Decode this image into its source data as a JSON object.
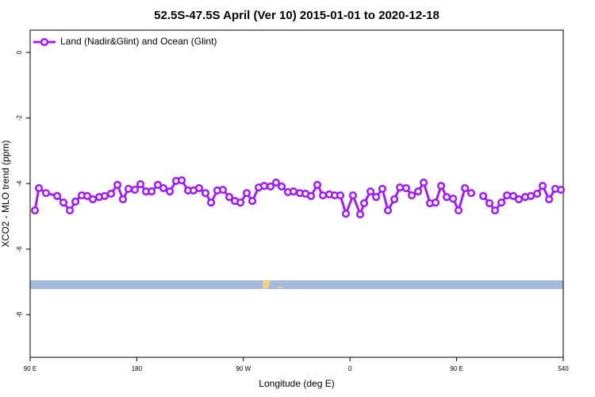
{
  "chart_data": {
    "type": "line",
    "title": "52.5S-47.5S April (Ver 10)   2015-01-01 to 2020-12-18",
    "x_label": "Longitude (deg E)",
    "y_label": "XCO2 - MLO trend (ppm)",
    "legend": "topleft",
    "xlim": [
      90,
      540
    ],
    "ylim": [
      -9.3,
      0.68
    ],
    "xticks": [
      {
        "value": 90,
        "label": "90 E"
      },
      180,
      {
        "value": 270,
        "label": "90 W"
      },
      {
        "value": 360,
        "label": "0"
      },
      {
        "value": 450,
        "label": "90 E"
      },
      540
    ],
    "yticks": [
      0,
      -2,
      -4,
      -6,
      -8
    ],
    "x": [
      94,
      97.4,
      103.4,
      112.8,
      118.1,
      123.5,
      128.2,
      133.5,
      138.2,
      142.9,
      148.3,
      152.9,
      158.3,
      163.7,
      168.3,
      173,
      178.4,
      183.1,
      187.8,
      192.5,
      197.8,
      202.5,
      207.9,
      213.2,
      217.9,
      223.3,
      227.9,
      232.6,
      238,
      242.7,
      248,
      252.7,
      258.1,
      262.8,
      267.5,
      272.8,
      277.5,
      282.9,
      287.5,
      292.9,
      297.6,
      302.3,
      307.6,
      312.3,
      317.7,
      322.4,
      327.1,
      332.4,
      337.1,
      342.5,
      347.1,
      351.8,
      356.5,
      362.5,
      368.6,
      371.9,
      377.3,
      382,
      387.3,
      392,
      397.4,
      402.1,
      407.4,
      412.1,
      417.5,
      422.2,
      427.5,
      432.2,
      436.9,
      441.6,
      447,
      451.6,
      457,
      462.3,
      467.5,
      472.4,
      477.7,
      482.4,
      487.8,
      492.5,
      497.8,
      502.5,
      507.9,
      512.6,
      517.9,
      522.6,
      528,
      533.3,
      538
    ],
    "series": [
      {
        "name": "Land (Nadir&Glint) and Ocean (Glint)",
        "color": "#a020f0",
        "values": [
          -4.82,
          -4.14,
          -4.29,
          -4.38,
          -4.58,
          -4.82,
          -4.55,
          -4.36,
          -4.38,
          -4.48,
          -4.41,
          -4.38,
          -4.31,
          -4.04,
          -4.48,
          -4.16,
          -4.19,
          -4.02,
          -4.24,
          -4.24,
          -4.04,
          -4.14,
          -4.24,
          -3.92,
          -3.9,
          -4.21,
          -4.21,
          -4.14,
          -4.29,
          -4.58,
          -4.21,
          -4.19,
          -4.41,
          -4.53,
          -4.58,
          -4.29,
          -4.53,
          -4.12,
          -4.07,
          -4.09,
          -3.97,
          -4.09,
          -4.26,
          -4.24,
          -4.29,
          -4.31,
          -4.38,
          -4.04,
          -4.36,
          -4.33,
          -4.36,
          -4.36,
          -4.92,
          -4.36,
          -4.94,
          -4.6,
          -4.24,
          -4.41,
          -4.16,
          -4.82,
          -4.48,
          -4.12,
          -4.14,
          -4.36,
          -4.24,
          -3.97,
          -4.6,
          -4.58,
          -4.07,
          -4.41,
          -4.46,
          -4.82,
          -4.14,
          -4.29,
          null,
          -4.38,
          -4.6,
          -4.82,
          -4.58,
          -4.36,
          -4.38,
          -4.48,
          -4.41,
          -4.38,
          -4.31,
          -4.07,
          -4.48,
          -4.16,
          -4.19
        ]
      }
    ]
  }
}
